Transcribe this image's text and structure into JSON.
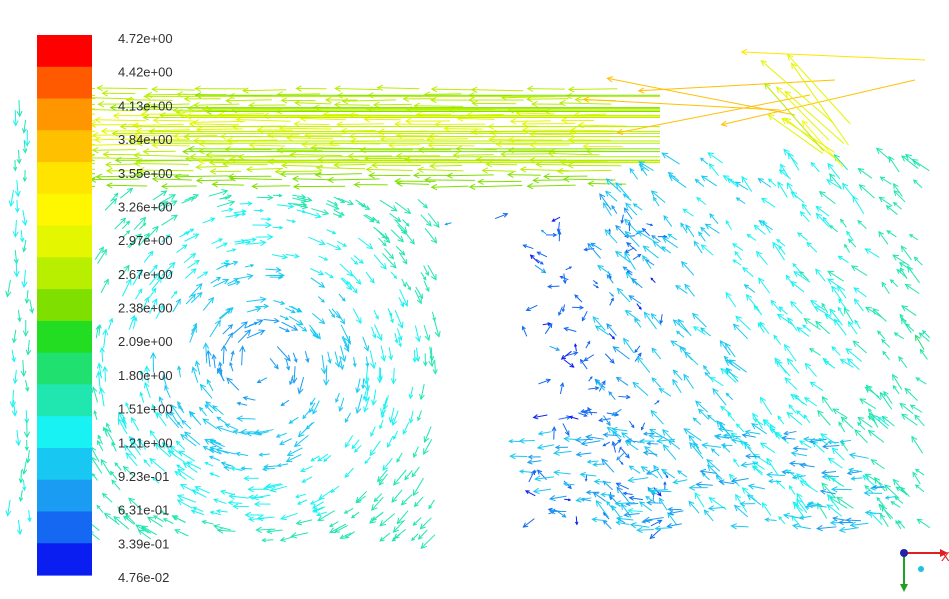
{
  "chart_data": {
    "type": "vector-field",
    "title": "",
    "colorbar": {
      "labels": [
        "4.72e+00",
        "4.42e+00",
        "4.13e+00",
        "3.84e+00",
        "3.55e+00",
        "3.26e+00",
        "2.97e+00",
        "2.67e+00",
        "2.38e+00",
        "2.09e+00",
        "1.80e+00",
        "1.51e+00",
        "1.21e+00",
        "9.23e-01",
        "6.31e-01",
        "3.39e-01",
        "4.76e-02"
      ],
      "colors": [
        "#ff0000",
        "#ff5a00",
        "#ff9600",
        "#ffc000",
        "#ffe400",
        "#fff700",
        "#e4f600",
        "#b8ee00",
        "#7fe000",
        "#22dd22",
        "#20e070",
        "#20e6b0",
        "#19f2f2",
        "#19c8f2",
        "#199cf2",
        "#1468f2",
        "#0a1ef2"
      ]
    },
    "axes_triad": {
      "x_label": "X"
    }
  }
}
